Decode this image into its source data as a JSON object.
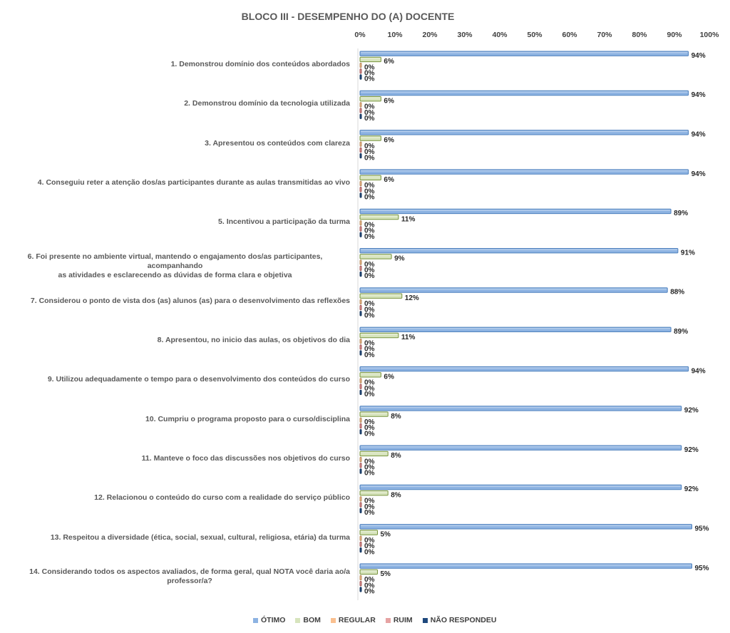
{
  "chart_data": {
    "type": "bar",
    "orientation": "horizontal",
    "title": "BLOCO III - DESEMPENHO DO (A) DOCENTE",
    "xlabel": "",
    "ylabel": "",
    "xlim": [
      0,
      100
    ],
    "x_ticks": [
      "0%",
      "10%",
      "20%",
      "30%",
      "40%",
      "50%",
      "60%",
      "70%",
      "80%",
      "90%",
      "100%"
    ],
    "x_tick_values": [
      0,
      10,
      20,
      30,
      40,
      50,
      60,
      70,
      80,
      90,
      100
    ],
    "x_axis_position": "top",
    "grid": false,
    "legend_position": "bottom",
    "categories": [
      "1. Demonstrou domínio dos conteúdos abordados",
      "2. Demonstrou domínio da tecnologia utilizada",
      "3. Apresentou os conteúdos com clareza",
      "4. Conseguiu reter a atenção dos/as participantes durante as aulas transmitidas ao vivo",
      "5. Incentivou a participação da turma",
      "6. Foi presente no ambiente virtual, mantendo o engajamento dos/as participantes, acompanhando as atividades e esclarecendo as dúvidas de forma clara e objetiva",
      "7. Considerou o ponto de vista dos (as) alunos (as) para o desenvolvimento das reflexões",
      "8. Apresentou, no inicio das aulas, os objetivos do dia",
      "9. Utilizou adequadamente o tempo para o desenvolvimento dos conteúdos do curso",
      "10. Cumpriu o programa proposto para o curso/disciplina",
      "11. Manteve o foco das discussões nos objetivos do curso",
      "12. Relacionou o conteúdo do curso com a realidade do serviço público",
      "13. Respeitou a diversidade (ética, social, sexual, cultural, religiosa, etária) da turma",
      "14. Considerando todos os aspectos avaliados, de forma geral, qual NOTA você daria ao/a professor/a?"
    ],
    "category_lines": [
      [
        "1. Demonstrou domínio dos conteúdos abordados"
      ],
      [
        "2. Demonstrou domínio da tecnologia utilizada"
      ],
      [
        "3. Apresentou os conteúdos com clareza"
      ],
      [
        "4. Conseguiu reter a atenção dos/as participantes durante as aulas transmitidas ao vivo"
      ],
      [
        "5. Incentivou a participação da turma"
      ],
      [
        "6. Foi presente no ambiente virtual, mantendo o engajamento dos/as participantes, acompanhando",
        "as atividades e esclarecendo as dúvidas de forma clara e objetiva"
      ],
      [
        "7. Considerou o ponto de vista dos (as) alunos (as) para o desenvolvimento das reflexões"
      ],
      [
        "8. Apresentou, no inicio das aulas, os objetivos do dia"
      ],
      [
        "9. Utilizou adequadamente o tempo para o desenvolvimento dos conteúdos do curso"
      ],
      [
        "10. Cumpriu o programa proposto para o curso/disciplina"
      ],
      [
        "11. Manteve o foco das discussões nos objetivos do curso"
      ],
      [
        "12. Relacionou o conteúdo do curso com a realidade do serviço público"
      ],
      [
        "13. Respeitou a diversidade (ética, social, sexual, cultural, religiosa, etária) da turma"
      ],
      [
        "14. Considerando todos os aspectos avaliados, de forma geral, qual NOTA você daria ao/a",
        "professor/a?"
      ]
    ],
    "series": [
      {
        "name": "ÓTIMO",
        "color": "#8db3e2",
        "edge": "#4f81bd",
        "values": [
          94,
          94,
          94,
          94,
          89,
          91,
          88,
          89,
          94,
          92,
          92,
          92,
          95,
          95
        ]
      },
      {
        "name": "BOM",
        "color": "#d7e4bd",
        "edge": "#77933c",
        "values": [
          6,
          6,
          6,
          6,
          11,
          9,
          12,
          11,
          6,
          8,
          8,
          8,
          5,
          5
        ]
      },
      {
        "name": "REGULAR",
        "color": "#fac090",
        "edge": "#b3885b",
        "values": [
          0,
          0,
          0,
          0,
          0,
          0,
          0,
          0,
          0,
          0,
          0,
          0,
          0,
          0
        ]
      },
      {
        "name": "RUIM",
        "color": "#e6a3a3",
        "edge": "#a05050",
        "values": [
          0,
          0,
          0,
          0,
          0,
          0,
          0,
          0,
          0,
          0,
          0,
          0,
          0,
          0
        ]
      },
      {
        "name": "NÃO RESPONDEU",
        "color": "#1f497d",
        "edge": "#17375e",
        "values": [
          0,
          0,
          0,
          0,
          0,
          0,
          0,
          0,
          0,
          0,
          0,
          0,
          0,
          0
        ]
      }
    ],
    "value_label_suffix": "%"
  }
}
